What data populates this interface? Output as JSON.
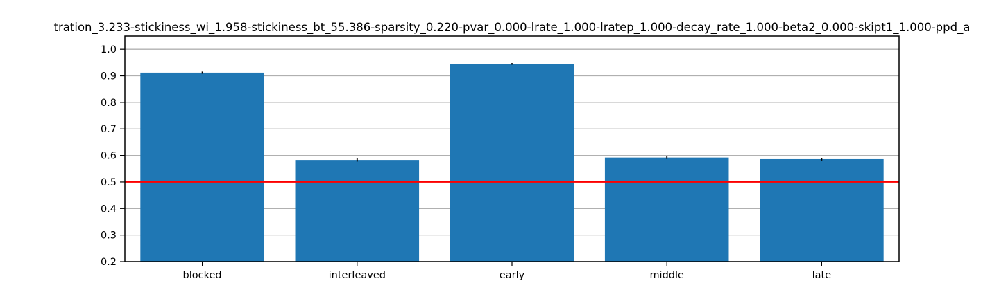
{
  "chart_data": {
    "type": "bar",
    "title": "tration_3.233-stickiness_wi_1.958-stickiness_bt_55.386-sparsity_0.220-pvar_0.000-lrate_1.000-lratep_1.000-decay_rate_1.000-beta2_0.000-skipt1_1.000-ppd_a",
    "xlabel": "",
    "ylabel": "",
    "categories": [
      "blocked",
      "interleaved",
      "early",
      "middle",
      "late"
    ],
    "values": [
      0.912,
      0.583,
      0.945,
      0.592,
      0.586
    ],
    "errors": [
      0.004,
      0.006,
      0.003,
      0.005,
      0.005
    ],
    "ylim": [
      0.2,
      1.05
    ],
    "yticks": [
      "0.2",
      "0.3",
      "0.4",
      "0.5",
      "0.6",
      "0.7",
      "0.8",
      "0.9",
      "1.0"
    ],
    "reference_line": 0.5,
    "grid": "y",
    "colors": {
      "bar": "#1f77b4",
      "reference_line": "#ff0000",
      "grid": "#b0b0b0",
      "error_bar": "#000000"
    }
  }
}
